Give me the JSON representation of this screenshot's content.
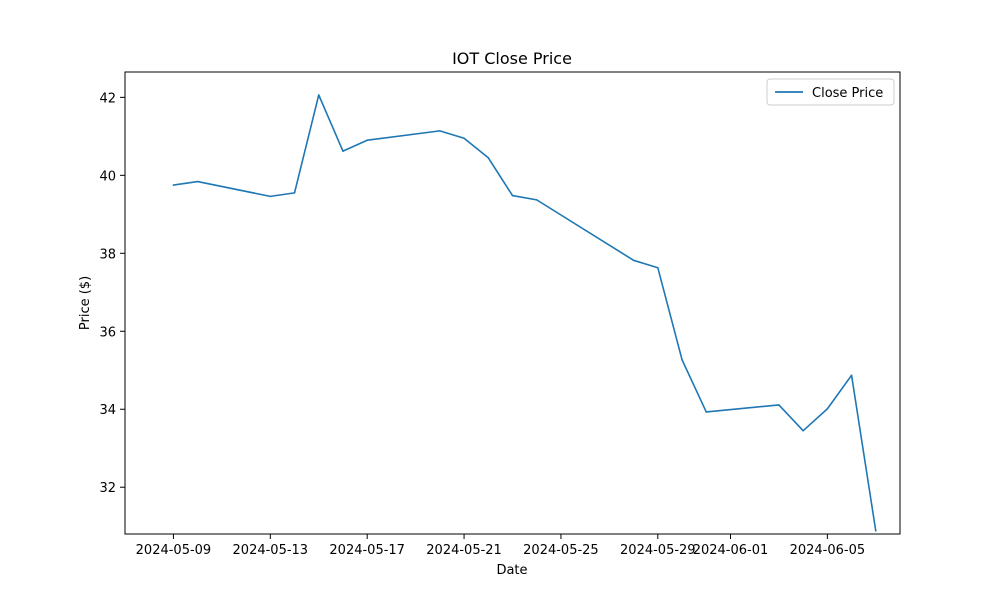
{
  "chart_data": {
    "type": "line",
    "title": "IOT Close Price",
    "xlabel": "Date",
    "ylabel": "Price ($)",
    "x_tick_labels": [
      "2024-05-09",
      "2024-05-13",
      "2024-05-17",
      "2024-05-21",
      "2024-05-25",
      "2024-05-29",
      "2024-06-01",
      "2024-06-05"
    ],
    "y_tick_labels": [
      "32",
      "34",
      "36",
      "38",
      "40",
      "42"
    ],
    "y_ticks": [
      32,
      34,
      36,
      38,
      40,
      42
    ],
    "ylim": [
      30.8,
      42.65
    ],
    "xlim": [
      "2024-05-07",
      "2024-06-08"
    ],
    "grid": false,
    "legend_position": "top-right",
    "series": [
      {
        "name": "Close Price",
        "color": "#1f77b4",
        "points": [
          {
            "x": "2024-05-09",
            "y": 39.75
          },
          {
            "x": "2024-05-10",
            "y": 39.84
          },
          {
            "x": "2024-05-13",
            "y": 39.46
          },
          {
            "x": "2024-05-14",
            "y": 39.55
          },
          {
            "x": "2024-05-15",
            "y": 42.06
          },
          {
            "x": "2024-05-16",
            "y": 40.62
          },
          {
            "x": "2024-05-17",
            "y": 40.9
          },
          {
            "x": "2024-05-20",
            "y": 41.14
          },
          {
            "x": "2024-05-21",
            "y": 40.95
          },
          {
            "x": "2024-05-22",
            "y": 40.45
          },
          {
            "x": "2024-05-23",
            "y": 39.48
          },
          {
            "x": "2024-05-24",
            "y": 39.37
          },
          {
            "x": "2024-05-28",
            "y": 37.82
          },
          {
            "x": "2024-05-29",
            "y": 37.63
          },
          {
            "x": "2024-05-30",
            "y": 35.27
          },
          {
            "x": "2024-05-31",
            "y": 33.93
          },
          {
            "x": "2024-06-03",
            "y": 34.11
          },
          {
            "x": "2024-06-04",
            "y": 33.45
          },
          {
            "x": "2024-06-05",
            "y": 34.01
          },
          {
            "x": "2024-06-06",
            "y": 34.87
          },
          {
            "x": "2024-06-07",
            "y": 30.88
          }
        ]
      }
    ]
  }
}
